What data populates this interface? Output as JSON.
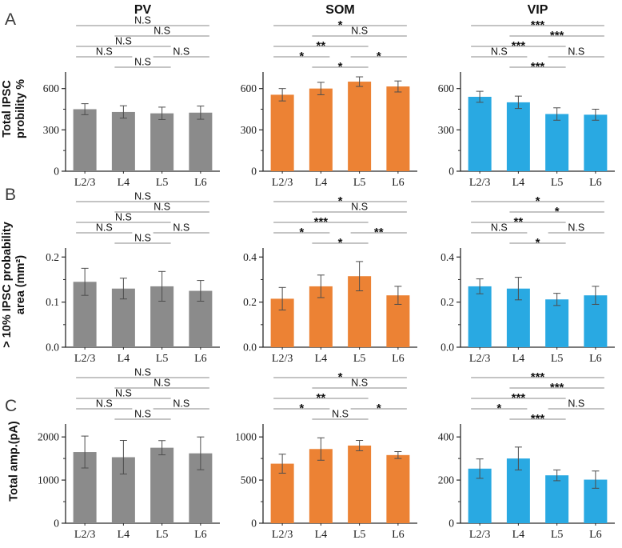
{
  "header": {
    "columns": [
      "PV",
      "SOM",
      "VIP"
    ]
  },
  "rows": [
    {
      "letter": "A",
      "ylabel_lines": [
        "Total IPSC",
        "probility %"
      ]
    },
    {
      "letter": "B",
      "ylabel_lines": [
        "> 10% IPSC probability",
        "area (mm²)"
      ]
    },
    {
      "letter": "C",
      "ylabel_lines": [
        "Total amp.(pA)"
      ]
    }
  ],
  "colors": {
    "pv_bar": "#8B8B8B",
    "som_bar": "#EC8234",
    "vip_bar": "#29A9E2",
    "error_bar": "#4D4D4D",
    "bracket_line": "#8A8A8A",
    "axis": "#2A2A2A",
    "text": "#1A1A1A"
  },
  "chart_data": [
    {
      "type": "bar",
      "row": "A",
      "col": "PV",
      "color_key": "pv_bar",
      "title": "PV",
      "ylabel": "Total IPSC probility %",
      "categories": [
        "L2/3",
        "L4",
        "L5",
        "L6"
      ],
      "values": [
        450,
        430,
        420,
        425
      ],
      "errors": [
        40,
        45,
        45,
        48
      ],
      "yticks": [
        0,
        300,
        600
      ],
      "ytick_labels": [
        "0",
        "300",
        "600"
      ],
      "ymax": 720,
      "significance": [
        {
          "a": 0,
          "b": 1,
          "label": "N.S",
          "level": 1
        },
        {
          "a": 1,
          "b": 2,
          "label": "N.S",
          "level": 0
        },
        {
          "a": 2,
          "b": 3,
          "label": "N.S",
          "level": 1
        },
        {
          "a": 0,
          "b": 2,
          "label": "N.S",
          "level": 2
        },
        {
          "a": 1,
          "b": 3,
          "label": "N.S",
          "level": 3
        },
        {
          "a": 0,
          "b": 3,
          "label": "N.S",
          "level": 4
        }
      ]
    },
    {
      "type": "bar",
      "row": "A",
      "col": "SOM",
      "color_key": "som_bar",
      "title": "SOM",
      "ylabel": "Total IPSC probility %",
      "categories": [
        "L2/3",
        "L4",
        "L5",
        "L6"
      ],
      "values": [
        555,
        600,
        650,
        615
      ],
      "errors": [
        45,
        45,
        35,
        40
      ],
      "yticks": [
        0,
        300,
        600
      ],
      "ytick_labels": [
        "0",
        "300",
        "600"
      ],
      "ymax": 720,
      "significance": [
        {
          "a": 0,
          "b": 1,
          "label": "*",
          "level": 1
        },
        {
          "a": 1,
          "b": 2,
          "label": "*",
          "level": 0
        },
        {
          "a": 2,
          "b": 3,
          "label": "*",
          "level": 1
        },
        {
          "a": 0,
          "b": 2,
          "label": "**",
          "level": 2
        },
        {
          "a": 1,
          "b": 3,
          "label": "N.S",
          "level": 3
        },
        {
          "a": 0,
          "b": 3,
          "label": "*",
          "level": 4
        }
      ]
    },
    {
      "type": "bar",
      "row": "A",
      "col": "VIP",
      "color_key": "vip_bar",
      "title": "VIP",
      "ylabel": "Total IPSC probility %",
      "categories": [
        "L2/3",
        "L4",
        "L5",
        "L6"
      ],
      "values": [
        540,
        500,
        415,
        410
      ],
      "errors": [
        40,
        45,
        45,
        40
      ],
      "yticks": [
        0,
        300,
        600
      ],
      "ytick_labels": [
        "0",
        "300",
        "600"
      ],
      "ymax": 720,
      "significance": [
        {
          "a": 0,
          "b": 1,
          "label": "N.S",
          "level": 1
        },
        {
          "a": 1,
          "b": 2,
          "label": "***",
          "level": 0
        },
        {
          "a": 2,
          "b": 3,
          "label": "N.S",
          "level": 1
        },
        {
          "a": 0,
          "b": 2,
          "label": "***",
          "level": 2
        },
        {
          "a": 1,
          "b": 3,
          "label": "***",
          "level": 3
        },
        {
          "a": 0,
          "b": 3,
          "label": "***",
          "level": 4
        }
      ]
    },
    {
      "type": "bar",
      "row": "B",
      "col": "PV",
      "color_key": "pv_bar",
      "title": "PV",
      "ylabel": "> 10% IPSC probability area (mm²)",
      "categories": [
        "L2/3",
        "L4",
        "L5",
        "L6"
      ],
      "values": [
        0.145,
        0.13,
        0.135,
        0.125
      ],
      "errors": [
        0.03,
        0.023,
        0.033,
        0.023
      ],
      "yticks": [
        0,
        0.1,
        0.2
      ],
      "ytick_labels": [
        "0.0",
        "0.1",
        "0.2"
      ],
      "ymax": 0.22,
      "significance": [
        {
          "a": 0,
          "b": 1,
          "label": "N.S",
          "level": 1
        },
        {
          "a": 1,
          "b": 2,
          "label": "N.S",
          "level": 0
        },
        {
          "a": 2,
          "b": 3,
          "label": "N.S",
          "level": 1
        },
        {
          "a": 0,
          "b": 2,
          "label": "N.S",
          "level": 2
        },
        {
          "a": 1,
          "b": 3,
          "label": "N.S",
          "level": 3
        },
        {
          "a": 0,
          "b": 3,
          "label": "N.S",
          "level": 4
        }
      ]
    },
    {
      "type": "bar",
      "row": "B",
      "col": "SOM",
      "color_key": "som_bar",
      "title": "SOM",
      "ylabel": "> 10% IPSC probability area (mm²)",
      "categories": [
        "L2/3",
        "L4",
        "L5",
        "L6"
      ],
      "values": [
        0.215,
        0.27,
        0.315,
        0.23
      ],
      "errors": [
        0.05,
        0.05,
        0.065,
        0.04
      ],
      "yticks": [
        0,
        0.2,
        0.4
      ],
      "ytick_labels": [
        "0.0",
        "0.2",
        "0.4"
      ],
      "ymax": 0.44,
      "significance": [
        {
          "a": 0,
          "b": 1,
          "label": "*",
          "level": 1
        },
        {
          "a": 1,
          "b": 2,
          "label": "*",
          "level": 0
        },
        {
          "a": 2,
          "b": 3,
          "label": "**",
          "level": 1
        },
        {
          "a": 0,
          "b": 2,
          "label": "***",
          "level": 2
        },
        {
          "a": 1,
          "b": 3,
          "label": "N.S",
          "level": 3
        },
        {
          "a": 0,
          "b": 3,
          "label": "*",
          "level": 4
        }
      ]
    },
    {
      "type": "bar",
      "row": "B",
      "col": "VIP",
      "color_key": "vip_bar",
      "title": "VIP",
      "ylabel": "> 10% IPSC probability area (mm²)",
      "categories": [
        "L2/3",
        "L4",
        "L5",
        "L6"
      ],
      "values": [
        0.27,
        0.26,
        0.212,
        0.23
      ],
      "errors": [
        0.033,
        0.05,
        0.027,
        0.04
      ],
      "yticks": [
        0,
        0.2,
        0.4
      ],
      "ytick_labels": [
        "0.0",
        "0.2",
        "0.4"
      ],
      "ymax": 0.44,
      "significance": [
        {
          "a": 0,
          "b": 1,
          "label": "N.S",
          "level": 1
        },
        {
          "a": 1,
          "b": 2,
          "label": "*",
          "level": 0
        },
        {
          "a": 2,
          "b": 3,
          "label": "N.S",
          "level": 1
        },
        {
          "a": 0,
          "b": 2,
          "label": "**",
          "level": 2
        },
        {
          "a": 1,
          "b": 3,
          "label": "*",
          "level": 3
        },
        {
          "a": 0,
          "b": 3,
          "label": "*",
          "level": 4
        }
      ]
    },
    {
      "type": "bar",
      "row": "C",
      "col": "PV",
      "color_key": "pv_bar",
      "title": "PV",
      "ylabel": "Total amp.(pA)",
      "categories": [
        "L2/3",
        "L4",
        "L5",
        "L6"
      ],
      "values": [
        1650,
        1530,
        1750,
        1620
      ],
      "errors": [
        370,
        390,
        165,
        380
      ],
      "yticks": [
        0,
        1000,
        2000
      ],
      "ytick_labels": [
        "0",
        "1000",
        "2000"
      ],
      "ymax": 2300,
      "significance": [
        {
          "a": 0,
          "b": 1,
          "label": "N.S",
          "level": 1
        },
        {
          "a": 1,
          "b": 2,
          "label": "N.S",
          "level": 0
        },
        {
          "a": 2,
          "b": 3,
          "label": "N.S",
          "level": 1
        },
        {
          "a": 0,
          "b": 2,
          "label": "N.S",
          "level": 2
        },
        {
          "a": 1,
          "b": 3,
          "label": "N.S",
          "level": 3
        },
        {
          "a": 0,
          "b": 3,
          "label": "N.S",
          "level": 4
        }
      ]
    },
    {
      "type": "bar",
      "row": "C",
      "col": "SOM",
      "color_key": "som_bar",
      "title": "SOM",
      "ylabel": "Total amp.(pA)",
      "categories": [
        "L2/3",
        "L4",
        "L5",
        "L6"
      ],
      "values": [
        690,
        860,
        900,
        790
      ],
      "errors": [
        110,
        130,
        60,
        40
      ],
      "yticks": [
        0,
        500,
        1000
      ],
      "ytick_labels": [
        "0",
        "500",
        "1000"
      ],
      "ymax": 1150,
      "significance": [
        {
          "a": 0,
          "b": 1,
          "label": "*",
          "level": 1
        },
        {
          "a": 1,
          "b": 2,
          "label": "N.S",
          "level": 0
        },
        {
          "a": 2,
          "b": 3,
          "label": "*",
          "level": 1
        },
        {
          "a": 0,
          "b": 2,
          "label": "**",
          "level": 2
        },
        {
          "a": 1,
          "b": 3,
          "label": "N.S",
          "level": 3
        },
        {
          "a": 0,
          "b": 3,
          "label": "*",
          "level": 4
        }
      ]
    },
    {
      "type": "bar",
      "row": "C",
      "col": "VIP",
      "color_key": "vip_bar",
      "title": "VIP",
      "ylabel": "Total amp.(pA)",
      "categories": [
        "L2/3",
        "L4",
        "L5",
        "L6"
      ],
      "values": [
        253,
        300,
        222,
        202
      ],
      "errors": [
        45,
        53,
        25,
        40
      ],
      "yticks": [
        0,
        200,
        400
      ],
      "ytick_labels": [
        "0",
        "200",
        "400"
      ],
      "ymax": 460,
      "significance": [
        {
          "a": 0,
          "b": 1,
          "label": "*",
          "level": 1
        },
        {
          "a": 1,
          "b": 2,
          "label": "***",
          "level": 0
        },
        {
          "a": 2,
          "b": 3,
          "label": "N.S",
          "level": 1
        },
        {
          "a": 0,
          "b": 2,
          "label": "***",
          "level": 2
        },
        {
          "a": 1,
          "b": 3,
          "label": "***",
          "level": 3
        },
        {
          "a": 0,
          "b": 3,
          "label": "***",
          "level": 4
        }
      ]
    }
  ]
}
